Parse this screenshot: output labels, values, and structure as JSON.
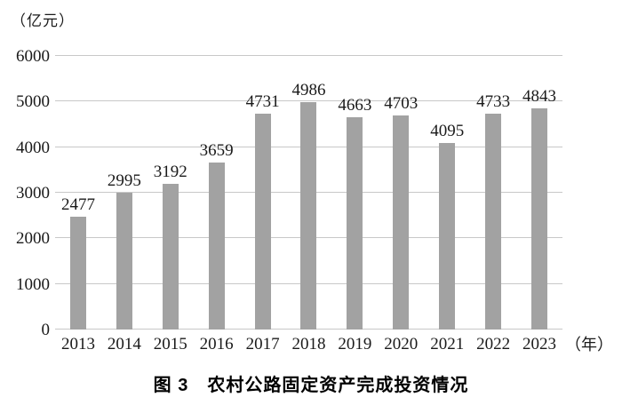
{
  "chart_data": {
    "type": "bar",
    "categories": [
      "2013",
      "2014",
      "2015",
      "2016",
      "2017",
      "2018",
      "2019",
      "2020",
      "2021",
      "2022",
      "2023"
    ],
    "values": [
      2477,
      2995,
      3192,
      3659,
      4731,
      4986,
      4663,
      4703,
      4095,
      4733,
      4843
    ],
    "title": "图 3　农村公路固定资产完成投资情况",
    "unit_label": "（亿元）",
    "x_unit_label": "（年）",
    "xlabel": "",
    "ylabel": "亿元",
    "ylim": [
      0,
      6000
    ],
    "ytick_step": 1000,
    "grid": true,
    "legend": "none",
    "bar_color": "#a2a2a2",
    "grid_color": "#c8c8c8",
    "text_color": "#1a1a1a"
  }
}
